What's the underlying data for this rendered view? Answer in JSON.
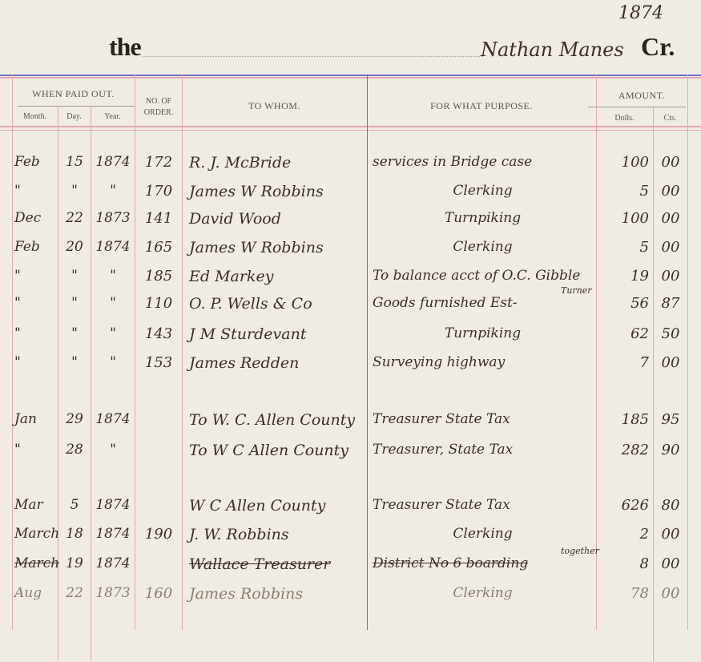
{
  "heading": {
    "prefix": "the",
    "account_name": "Nathan Manes",
    "suffix": "Cr.",
    "year_note": "1874"
  },
  "columns": {
    "when_paid_out": "WHEN PAID OUT.",
    "month": "Month.",
    "day": "Day.",
    "year": "Year.",
    "order_no": "NO. OF ORDER.",
    "to_whom": "TO WHOM.",
    "purpose": "FOR WHAT PURPOSE.",
    "amount": "AMOUNT.",
    "dolls": "Dolls.",
    "cts": "Cts."
  },
  "rows": [
    {
      "month": "Feb",
      "day": "15",
      "year": "1874",
      "order": "172",
      "to": "R. J. McBride",
      "purpose": "services in Bridge case",
      "dolls": "100",
      "cts": "00"
    },
    {
      "month": "\"",
      "day": "\"",
      "year": "\"",
      "order": "170",
      "to": "James W Robbins",
      "purpose": "Clerking",
      "dolls": "5",
      "cts": "00"
    },
    {
      "month": "Dec",
      "day": "22",
      "year": "1873",
      "order": "141",
      "to": "David Wood",
      "purpose": "Turnpiking",
      "dolls": "100",
      "cts": "00"
    },
    {
      "month": "Feb",
      "day": "20",
      "year": "1874",
      "order": "165",
      "to": "James W Robbins",
      "purpose": "Clerking",
      "dolls": "5",
      "cts": "00"
    },
    {
      "month": "\"",
      "day": "\"",
      "year": "\"",
      "order": "185",
      "to": "Ed Markey",
      "purpose": "To balance acct of O.C. Gibble",
      "dolls": "19",
      "cts": "00"
    },
    {
      "month": "\"",
      "day": "\"",
      "year": "\"",
      "order": "110",
      "to": "O. P. Wells & Co",
      "purpose": "Goods furnished Est-",
      "purpose_note": "Turner",
      "dolls": "56",
      "cts": "87"
    },
    {
      "month": "\"",
      "day": "\"",
      "year": "\"",
      "order": "143",
      "to": "J M Sturdevant",
      "purpose": "Turnpiking",
      "dolls": "62",
      "cts": "50"
    },
    {
      "month": "\"",
      "day": "\"",
      "year": "\"",
      "order": "153",
      "to": "James Redden",
      "purpose": "Surveying highway",
      "dolls": "7",
      "cts": "00"
    },
    {
      "month": "Jan",
      "day": "29",
      "year": "1874",
      "order": "",
      "to": "To W. C. Allen County",
      "purpose": "Treasurer State Tax",
      "dolls": "185",
      "cts": "95"
    },
    {
      "month": "\"",
      "day": "28",
      "year": "\"",
      "order": "",
      "to": "To W C Allen County",
      "purpose": "Treasurer, State Tax",
      "dolls": "282",
      "cts": "90"
    },
    {
      "month": "Mar",
      "day": "5",
      "year": "1874",
      "order": "",
      "to": "W C Allen County",
      "purpose": "Treasurer State Tax",
      "dolls": "626",
      "cts": "80"
    },
    {
      "month": "March",
      "day": "18",
      "year": "1874",
      "order": "190",
      "to": "J. W. Robbins",
      "purpose": "Clerking",
      "dolls": "2",
      "cts": "00"
    },
    {
      "month": "March",
      "day": "19",
      "year": "1874",
      "order": "",
      "to": "Wallace Treasurer",
      "purpose": "District No 6 boarding",
      "purpose_note": "together",
      "dolls": "8",
      "cts": "00",
      "struck": true
    },
    {
      "month": "Aug",
      "day": "22",
      "year": "1873",
      "order": "160",
      "to": "James Robbins",
      "purpose": "Clerking",
      "dolls": "78",
      "cts": "00",
      "faded": true
    }
  ],
  "colors": {
    "paper": "#f0ece3",
    "red_rule": "#e3a7b0",
    "blue_rule": "#6b6fc8",
    "ink": "#3b2f26"
  }
}
